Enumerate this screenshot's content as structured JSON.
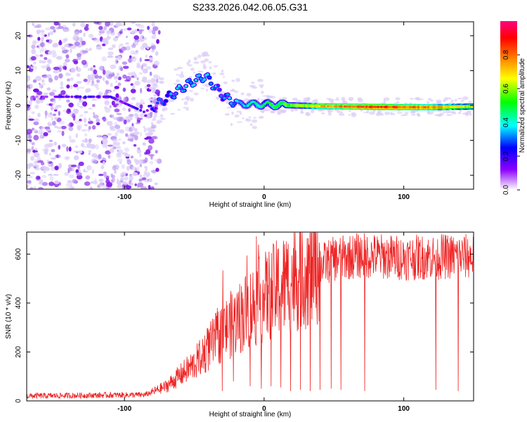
{
  "title": "S233.2026.042.06.05.G31",
  "chart_data": [
    {
      "type": "heatmap",
      "name": "spectrogram",
      "xlabel": "Height of straight line (km)",
      "ylabel": "Frequency (Hz)",
      "xlim": [
        -170,
        150
      ],
      "ylim": [
        -24,
        24
      ],
      "xticks": [
        -100,
        0,
        100
      ],
      "yticks": [
        -20,
        -10,
        0,
        10,
        20
      ],
      "colorbar": {
        "label": "Normalized spectral amplitude",
        "range": [
          0,
          1
        ],
        "ticks": [
          "0.0",
          "0.2",
          "0.4",
          "0.6",
          "0.8"
        ],
        "colormap": [
          "#ffffff",
          "#8b00ff",
          "#0000ff",
          "#00ffff",
          "#00ff00",
          "#ffff00",
          "#ff8000",
          "#ff0000",
          "#ff0080"
        ]
      },
      "ridge": [
        {
          "x": -170,
          "freq": 2.5,
          "amp": 0.05
        },
        {
          "x": -130,
          "freq": 2.5,
          "amp": 0.2
        },
        {
          "x": -110,
          "freq": 2.5,
          "amp": 0.15
        },
        {
          "x": -85,
          "freq": -2.0,
          "amp": 0.15
        },
        {
          "x": -70,
          "freq": 2.0,
          "amp": 0.3
        },
        {
          "x": -55,
          "freq": 6.0,
          "amp": 0.35
        },
        {
          "x": -42,
          "freq": 8.5,
          "amp": 0.35
        },
        {
          "x": -30,
          "freq": 3.0,
          "amp": 0.3
        },
        {
          "x": -20,
          "freq": 0.5,
          "amp": 0.35
        },
        {
          "x": 0,
          "freq": 0.3,
          "amp": 0.45
        },
        {
          "x": 40,
          "freq": -0.2,
          "amp": 0.7
        },
        {
          "x": 80,
          "freq": -0.4,
          "amp": 0.85
        },
        {
          "x": 120,
          "freq": -0.5,
          "amp": 0.75
        },
        {
          "x": 148,
          "freq": -0.3,
          "amp": 0.6
        }
      ]
    },
    {
      "type": "line",
      "name": "snr",
      "xlabel": "Height of straight line (km)",
      "ylabel": "SNR (10 * v/v)",
      "xlim": [
        -170,
        150
      ],
      "ylim": [
        0,
        690
      ],
      "xticks": [
        -100,
        0,
        100
      ],
      "yticks": [
        0,
        200,
        400,
        600
      ],
      "color": "#ee2222",
      "trend": [
        {
          "x": -170,
          "y": 20
        },
        {
          "x": -85,
          "y": 25
        },
        {
          "x": -70,
          "y": 60
        },
        {
          "x": -50,
          "y": 150
        },
        {
          "x": -30,
          "y": 280
        },
        {
          "x": -10,
          "y": 380
        },
        {
          "x": 10,
          "y": 460
        },
        {
          "x": 30,
          "y": 530
        },
        {
          "x": 50,
          "y": 580
        },
        {
          "x": 70,
          "y": 595
        },
        {
          "x": 100,
          "y": 585
        },
        {
          "x": 130,
          "y": 590
        },
        {
          "x": 150,
          "y": 590
        }
      ],
      "dropouts": [
        {
          "x": -30,
          "y": 40
        },
        {
          "x": -22,
          "y": 80
        },
        {
          "x": -10,
          "y": 60
        },
        {
          "x": -2,
          "y": 50
        },
        {
          "x": 5,
          "y": 60
        },
        {
          "x": 12,
          "y": 55
        },
        {
          "x": 19,
          "y": 40
        },
        {
          "x": 26,
          "y": 45
        },
        {
          "x": 33,
          "y": 40
        },
        {
          "x": 40,
          "y": 45
        },
        {
          "x": 48,
          "y": 50
        },
        {
          "x": 55,
          "y": 45
        },
        {
          "x": 72,
          "y": 40
        },
        {
          "x": 123,
          "y": 45
        },
        {
          "x": 139,
          "y": 40
        }
      ]
    }
  ]
}
